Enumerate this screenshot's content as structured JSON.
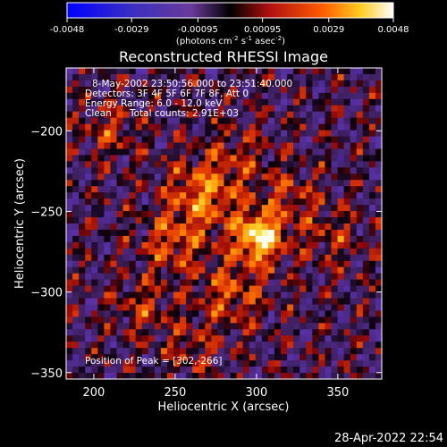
{
  "chart_data": {
    "type": "heatmap",
    "title": "Reconstructed RHESSI Image",
    "xlabel": "Heliocentric X (arcsec)",
    "ylabel": "Heliocentric Y (arcsec)",
    "xlim": [
      183,
      377
    ],
    "ylim": [
      -354,
      -161
    ],
    "x_ticks": [
      200,
      250,
      300,
      350
    ],
    "y_ticks": [
      -200,
      -250,
      -300,
      -350
    ],
    "colorbar": {
      "min": -0.0048,
      "max": 0.0048,
      "ticks": [
        -0.0048,
        -0.0029,
        -0.00095,
        0.00095,
        0.0029,
        0.0048
      ],
      "tick_labels": [
        "-0.0048",
        "-0.0029",
        "-0.00095",
        "0.00095",
        "0.0029",
        "0.0048"
      ],
      "units_prefix": "(photons cm",
      "units_exp1": "-2",
      "units_mid1": " s",
      "units_exp2": "-1",
      "units_mid2": " asec",
      "units_exp3": "-2",
      "units_suffix": ")"
    },
    "annotations": {
      "time_range": "8-May-2002 23:50:56.000 to 23:51:40.000",
      "detectors": "Detectors: 3F 4F 5F 6F 7F 8F, Att 0",
      "energy": "Energy Range: 6.0 - 12.0 keV",
      "clean": "Clean",
      "total_counts": "Total counts: 2.91E+03",
      "peak": "Position of Peak = [302,-266]"
    },
    "peak": [
      302,
      -266
    ],
    "sources": [
      {
        "x": 302,
        "y": -266,
        "amp": 1.0,
        "s": 10
      },
      {
        "x": 268,
        "y": -240,
        "amp": 0.55,
        "s": 16
      },
      {
        "x": 248,
        "y": -270,
        "amp": 0.4,
        "s": 13
      },
      {
        "x": 285,
        "y": -300,
        "amp": 0.4,
        "s": 15
      },
      {
        "x": 320,
        "y": -240,
        "amp": 0.3,
        "s": 12
      },
      {
        "x": 210,
        "y": -200,
        "amp": 0.3,
        "s": 12
      },
      {
        "x": 345,
        "y": -265,
        "amp": 0.25,
        "s": 14
      },
      {
        "x": 230,
        "y": -310,
        "amp": 0.3,
        "s": 12
      },
      {
        "x": 260,
        "y": -335,
        "amp": 0.25,
        "s": 12
      },
      {
        "x": 290,
        "y": -215,
        "amp": 0.2,
        "s": 14
      }
    ]
  },
  "timestamp": "28-Apr-2022 22:54"
}
